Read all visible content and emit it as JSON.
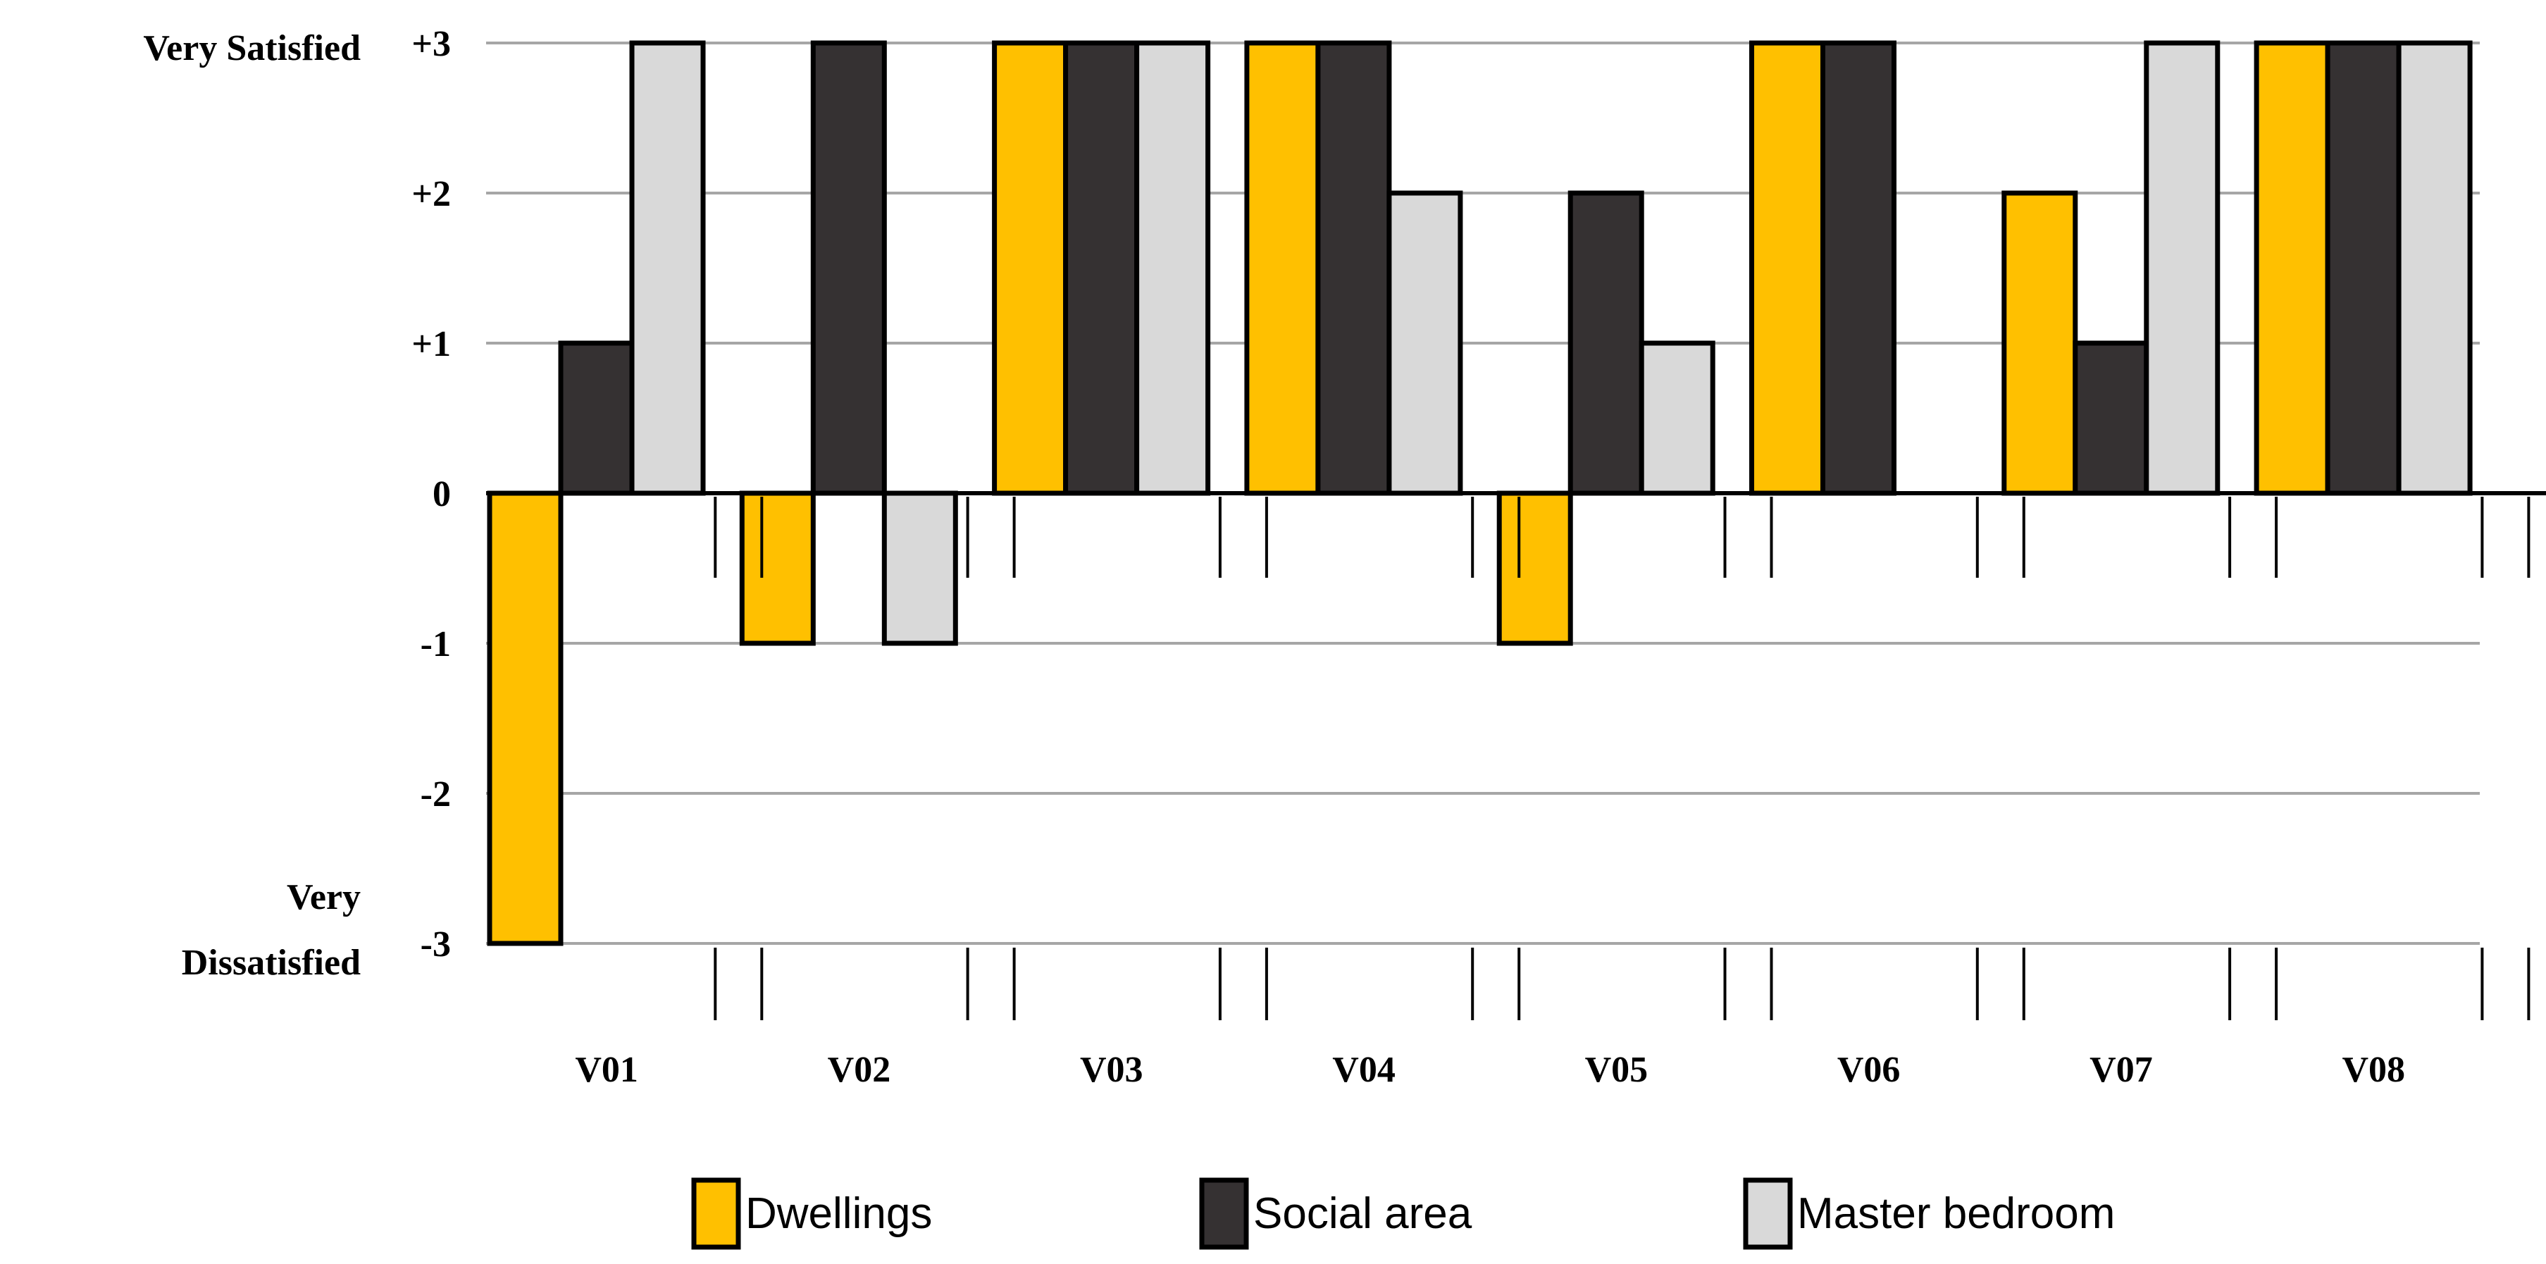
{
  "chart_data": {
    "type": "bar",
    "title": "",
    "xlabel": "",
    "ylabel": "",
    "categories": [
      "V01",
      "V02",
      "V03",
      "V04",
      "V05",
      "V06",
      "V07",
      "V08"
    ],
    "series": [
      {
        "name": "Dwellings",
        "color": "#FFC000",
        "values": [
          -3,
          -1,
          3,
          3,
          -1,
          3,
          2,
          3
        ]
      },
      {
        "name": "Social area",
        "color": "#353132",
        "values": [
          1,
          3,
          3,
          3,
          2,
          3,
          1,
          3
        ]
      },
      {
        "name": "Master bedroom",
        "color": "#D9D9D9",
        "values": [
          3,
          -1,
          3,
          2,
          1,
          null,
          3,
          3
        ]
      }
    ],
    "ylim": [
      -3,
      3
    ],
    "yticks": [
      {
        "value": 3,
        "label": "+3"
      },
      {
        "value": 2,
        "label": "+2"
      },
      {
        "value": 1,
        "label": "+1"
      },
      {
        "value": 0,
        "label": "0"
      },
      {
        "value": -1,
        "label": "-1"
      },
      {
        "value": -2,
        "label": "-2"
      },
      {
        "value": -3,
        "label": "-3"
      }
    ],
    "axis_annotations": {
      "top": "Very Satisfied",
      "bottom_line1": "Very",
      "bottom_line2": "Dissatisfied"
    },
    "grid": true,
    "legend_position": "bottom"
  }
}
